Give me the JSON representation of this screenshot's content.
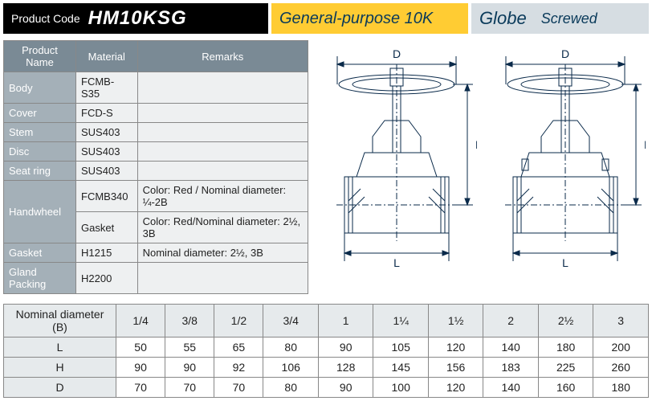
{
  "header": {
    "code_label": "Product Code",
    "code_value": "HM10KSG",
    "purpose": "General-purpose 10K",
    "type_big": "Globe",
    "type_small": "Screwed"
  },
  "material_table": {
    "headers": [
      "Product Name",
      "Material",
      "Remarks"
    ],
    "rows": [
      {
        "name": "Body",
        "material": "FCMB-S35",
        "remarks": ""
      },
      {
        "name": "Cover",
        "material": "FCD-S",
        "remarks": ""
      },
      {
        "name": "Stem",
        "material": "SUS403",
        "remarks": ""
      },
      {
        "name": "Disc",
        "material": "SUS403",
        "remarks": ""
      },
      {
        "name": "Seat ring",
        "material": "SUS403",
        "remarks": ""
      },
      {
        "name": "Handwheel",
        "material": "FCMB340",
        "remarks": "Color: Red / Nominal diameter: ¼-2B",
        "rowspan": 2
      },
      {
        "material": "Gasket",
        "remarks": "Color: Red/Nominal diameter: 2½, 3B"
      },
      {
        "name": "Gasket",
        "material": "H1215",
        "remarks": "Nominal diameter: 2½, 3B"
      },
      {
        "name": "Gland Packing",
        "material": "H2200",
        "remarks": ""
      }
    ]
  },
  "diagram": {
    "labels": {
      "D": "D",
      "H": "H",
      "L": "L"
    }
  },
  "dim_table": {
    "corner": "Nominal diameter (B)",
    "headers": [
      "1/4",
      "3/8",
      "1/2",
      "3/4",
      "1",
      "1¼",
      "1½",
      "2",
      "2½",
      "3"
    ],
    "rows": [
      {
        "label": "L",
        "v": [
          50,
          55,
          65,
          80,
          90,
          105,
          120,
          140,
          180,
          200
        ]
      },
      {
        "label": "H",
        "v": [
          90,
          90,
          92,
          106,
          128,
          145,
          156,
          183,
          225,
          260
        ]
      },
      {
        "label": "D",
        "v": [
          70,
          70,
          70,
          80,
          90,
          100,
          120,
          140,
          160,
          180
        ]
      }
    ]
  }
}
